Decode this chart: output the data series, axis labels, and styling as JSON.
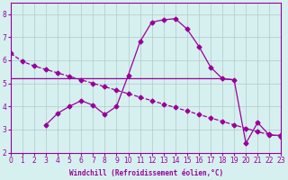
{
  "xlabel": "Windchill (Refroidissement éolien,°C)",
  "bg_color": "#d6f0f0",
  "line_color": "#990099",
  "grid_color": "#b0c8c8",
  "xlim": [
    0,
    23
  ],
  "ylim": [
    2,
    8.5
  ],
  "yticks": [
    2,
    3,
    4,
    5,
    6,
    7,
    8
  ],
  "xticks": [
    0,
    1,
    2,
    3,
    4,
    5,
    6,
    7,
    8,
    9,
    10,
    11,
    12,
    13,
    14,
    15,
    16,
    17,
    18,
    19,
    20,
    21,
    22,
    23
  ],
  "diag_x": [
    0,
    1,
    2,
    3,
    4,
    5,
    6,
    7,
    8,
    9,
    10,
    11,
    12,
    13,
    14,
    15,
    16,
    17,
    18,
    19,
    20,
    21,
    22,
    23
  ],
  "diag_y": [
    6.3,
    5.95,
    5.75,
    5.6,
    5.45,
    5.3,
    5.15,
    5.0,
    4.85,
    4.7,
    4.55,
    4.4,
    4.25,
    4.1,
    3.95,
    3.8,
    3.65,
    3.5,
    3.35,
    3.2,
    3.05,
    2.9,
    2.78,
    2.7
  ],
  "flat_x": [
    0,
    1,
    2,
    3,
    4,
    5,
    6,
    7,
    8,
    9,
    10,
    11,
    12,
    13,
    14,
    15,
    16,
    17,
    18,
    19
  ],
  "flat_y": [
    5.2,
    5.2,
    5.2,
    5.2,
    5.2,
    5.2,
    5.2,
    5.2,
    5.2,
    5.2,
    5.2,
    5.2,
    5.2,
    5.2,
    5.2,
    5.2,
    5.2,
    5.2,
    5.2,
    5.15
  ],
  "bump_x": [
    3,
    4,
    5,
    6,
    7,
    8,
    9,
    10,
    11,
    12,
    13,
    14,
    15,
    16,
    17,
    18,
    19,
    20,
    21,
    22,
    23
  ],
  "bump_y": [
    3.2,
    3.7,
    4.0,
    4.25,
    4.05,
    3.65,
    4.0,
    5.35,
    6.8,
    7.65,
    7.75,
    7.8,
    7.35,
    6.6,
    5.7,
    5.2,
    5.15,
    2.4,
    3.3,
    2.75,
    2.75
  ]
}
